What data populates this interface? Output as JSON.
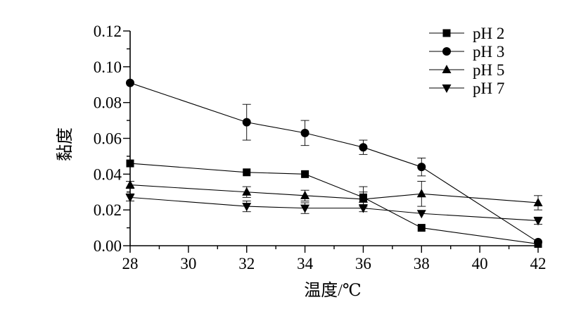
{
  "chart_data": {
    "type": "line",
    "xlabel": "温度/℃",
    "ylabel": "黏度",
    "xlim": [
      28,
      42
    ],
    "ylim": [
      0,
      0.12
    ],
    "x_ticks": [
      "28",
      "30",
      "32",
      "34",
      "36",
      "38",
      "40",
      "42"
    ],
    "y_ticks": [
      "0.00",
      "0.02",
      "0.04",
      "0.06",
      "0.08",
      "0.10",
      "0.12"
    ],
    "x": [
      28,
      32,
      34,
      36,
      38,
      42
    ],
    "legend_position": "top-right",
    "grid": false,
    "series": [
      {
        "name": "pH 2",
        "marker": "square",
        "values": [
          0.046,
          0.041,
          0.04,
          0.027,
          0.01,
          0.001
        ],
        "errors": [
          0.001,
          0.001,
          0.001,
          0.006,
          0.001,
          0.001
        ]
      },
      {
        "name": "pH 3",
        "marker": "circle",
        "values": [
          0.091,
          0.069,
          0.063,
          0.055,
          0.044,
          0.002
        ],
        "errors": [
          0.001,
          0.01,
          0.007,
          0.004,
          0.005,
          0.001
        ]
      },
      {
        "name": "pH 5",
        "marker": "triangle-up",
        "values": [
          0.034,
          0.03,
          0.028,
          0.026,
          0.029,
          0.024
        ],
        "errors": [
          0.002,
          0.003,
          0.003,
          0.004,
          0.007,
          0.004
        ]
      },
      {
        "name": "pH 7",
        "marker": "triangle-down",
        "values": [
          0.027,
          0.022,
          0.021,
          0.021,
          0.018,
          0.014
        ],
        "errors": [
          0.002,
          0.003,
          0.003,
          0.002,
          0.001,
          0.002
        ]
      }
    ]
  }
}
